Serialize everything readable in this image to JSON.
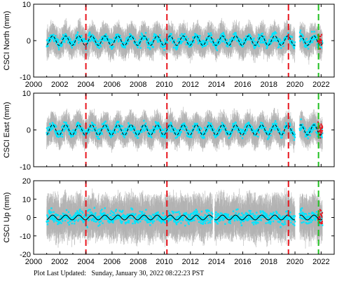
{
  "footer": {
    "label": "Plot Last Updated:",
    "timestamp": "Sunday, January 30, 2022 08:22:23 PST"
  },
  "colors": {
    "data_points": "#00e5ff",
    "error_bars": "#b3b3b3",
    "model_curve": "#000000",
    "break_red": "#e8141c",
    "break_green": "#1fbf1f",
    "outliers": "#e8141c"
  },
  "chart_data": [
    {
      "type": "scatter",
      "ylabel": "CSCI North (mm)",
      "xlim": [
        2000,
        2023
      ],
      "ylim": [
        -10,
        10
      ],
      "yticks": [
        -10,
        0,
        10
      ],
      "xticks": [
        2000,
        2002,
        2004,
        2006,
        2008,
        2010,
        2012,
        2014,
        2016,
        2018,
        2020,
        2022
      ],
      "show_x_tick_labels": true,
      "series_span": [
        2001.0,
        2022.1
      ],
      "scatter_amplitude": 2.3,
      "error_bar_amplitude": 3.0,
      "model_amplitude": 1.3,
      "break_lines": [
        {
          "x": 2004.0,
          "color": "red"
        },
        {
          "x": 2010.2,
          "color": "red"
        },
        {
          "x": 2019.5,
          "color": "red"
        },
        {
          "x": 2021.8,
          "color": "green"
        }
      ]
    },
    {
      "type": "scatter",
      "ylabel": "CSCI East (mm)",
      "xlim": [
        2000,
        2023
      ],
      "ylim": [
        -10,
        10
      ],
      "yticks": [
        -10,
        0,
        10
      ],
      "xticks": [
        2000,
        2002,
        2004,
        2006,
        2008,
        2010,
        2012,
        2014,
        2016,
        2018,
        2020,
        2022
      ],
      "show_x_tick_labels": false,
      "series_span": [
        2001.0,
        2022.1
      ],
      "scatter_amplitude": 2.2,
      "error_bar_amplitude": 3.0,
      "model_amplitude": 1.4,
      "break_lines": [
        {
          "x": 2004.0,
          "color": "red"
        },
        {
          "x": 2010.2,
          "color": "red"
        },
        {
          "x": 2019.5,
          "color": "red"
        },
        {
          "x": 2021.8,
          "color": "green"
        }
      ]
    },
    {
      "type": "scatter",
      "ylabel": "CSCI Up (mm)",
      "xlim": [
        2000,
        2023
      ],
      "ylim": [
        -20,
        20
      ],
      "yticks": [
        -20,
        -10,
        0,
        10,
        20
      ],
      "xticks": [
        2000,
        2002,
        2004,
        2006,
        2008,
        2010,
        2012,
        2014,
        2016,
        2018,
        2020,
        2022
      ],
      "show_x_tick_labels": true,
      "series_span": [
        2001.0,
        2022.1
      ],
      "scatter_amplitude": 6.0,
      "error_bar_amplitude": 9.0,
      "model_amplitude": 1.3,
      "break_lines": [
        {
          "x": 2004.0,
          "color": "red"
        },
        {
          "x": 2010.2,
          "color": "red"
        },
        {
          "x": 2019.5,
          "color": "red"
        },
        {
          "x": 2021.8,
          "color": "green"
        }
      ]
    }
  ]
}
